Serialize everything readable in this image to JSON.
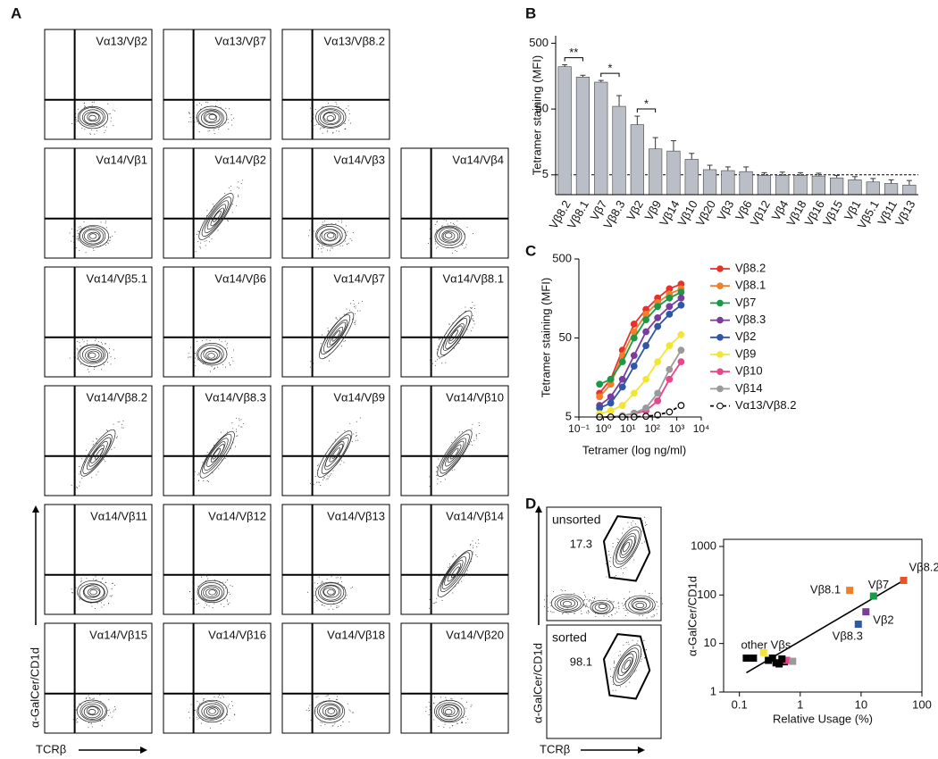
{
  "panel_labels": [
    "A",
    "B",
    "C",
    "D"
  ],
  "panel_a": {
    "y_label": "α-GalCer/CD1d",
    "x_label": "TCRβ",
    "plots": [
      "Vα13/Vβ2",
      "Vα13/Vβ7",
      "Vα13/Vβ8.2",
      "Vα14/Vβ1",
      "Vα14/Vβ2",
      "Vα14/Vβ3",
      "Vα14/Vβ4",
      "Vα14/Vβ5.1",
      "Vα14/Vβ6",
      "Vα14/Vβ7",
      "Vα14/Vβ8.1",
      "Vα14/Vβ8.2",
      "Vα14/Vβ8.3",
      "Vα14/Vβ9",
      "Vα14/Vβ10",
      "Vα14/Vβ11",
      "Vα14/Vβ12",
      "Vα14/Vβ13",
      "Vα14/Vβ14",
      "Vα14/Vβ15",
      "Vα14/Vβ16",
      "Vα14/Vβ18",
      "Vα14/Vβ20"
    ]
  },
  "panel_d_flow": {
    "y_label": "α-GalCer/CD1d",
    "x_label": "TCRβ",
    "plots": [
      {
        "label": "unsorted",
        "gate": 17.3
      },
      {
        "label": "sorted",
        "gate": 98.1
      }
    ]
  },
  "chart_data": [
    {
      "type": "bar",
      "y_label": "Tetramer staining (MFI)",
      "categories": [
        "Vβ8.2",
        "Vβ8.1",
        "Vβ7",
        "Vβ8.3",
        "Vβ2",
        "Vβ9",
        "Vβ14",
        "Vβ10",
        "Vβ20",
        "Vβ3",
        "Vβ6",
        "Vβ12",
        "Vβ4",
        "Vβ18",
        "Vβ16",
        "Vβ15",
        "Vβ1",
        "Vβ5.1",
        "Vβ11",
        "Vβ13"
      ],
      "values": [
        220,
        153,
        128,
        55,
        29,
        12.4,
        11.5,
        8.6,
        6.0,
        5.8,
        5.6,
        4.9,
        4.9,
        4.9,
        4.8,
        4.5,
        4.2,
        3.9,
        3.7,
        3.5
      ],
      "errors": [
        15,
        10,
        8,
        25,
        10,
        6,
        5,
        2,
        1,
        0.8,
        1,
        0.5,
        0.6,
        0.5,
        0.5,
        0.4,
        0.5,
        0.5,
        0.5,
        0.6
      ],
      "color": "#b9bec7",
      "log_y": true,
      "ylim": [
        2.5,
        650
      ],
      "yticks": [
        5,
        50,
        500
      ],
      "hline": 5,
      "annotations": [
        "**",
        "*",
        "*"
      ]
    },
    {
      "type": "line",
      "x_label": "Tetramer  (log ng/ml)",
      "y_label": "Tetramer staining (MFI)",
      "log_x": true,
      "log_y": true,
      "xlim": [
        0.1,
        10000
      ],
      "ylim": [
        5,
        500
      ],
      "xticks": [
        {
          "value": 0.1,
          "label": "10⁻¹"
        },
        {
          "value": 1,
          "label": "10⁰"
        },
        {
          "value": 10,
          "label": "10¹"
        },
        {
          "value": 100,
          "label": "10²"
        },
        {
          "value": 1000,
          "label": "10³"
        },
        {
          "value": 10000,
          "label": "10⁴"
        }
      ],
      "yticks": [
        5,
        50,
        500
      ],
      "x": [
        0.7,
        2,
        6,
        18,
        55,
        165,
        500,
        1500
      ],
      "series": [
        {
          "name": "Vβ8.2",
          "color": "#e8312a",
          "values": [
            10,
            15,
            35,
            75,
            115,
            160,
            210,
            240
          ]
        },
        {
          "name": "Vβ8.1",
          "color": "#f07f2a",
          "values": [
            9,
            13,
            30,
            60,
            100,
            140,
            180,
            210
          ]
        },
        {
          "name": "Vβ7",
          "color": "#1a9a48",
          "values": [
            13,
            15,
            25,
            50,
            85,
            125,
            160,
            190
          ]
        },
        {
          "name": "Vβ8.3",
          "color": "#7a3d9c",
          "values": [
            7,
            9,
            15,
            30,
            60,
            90,
            125,
            160
          ]
        },
        {
          "name": "Vβ2",
          "color": "#2f57a5",
          "values": [
            6.5,
            7.5,
            12,
            22,
            40,
            70,
            100,
            130
          ]
        },
        {
          "name": "Vβ9",
          "color": "#f2e632",
          "values": [
            5.5,
            6,
            7,
            10,
            15,
            25,
            40,
            55
          ]
        },
        {
          "name": "Vβ10",
          "color": "#e8468b",
          "values": [
            5,
            5,
            5.2,
            5.5,
            6,
            8,
            15,
            25
          ]
        },
        {
          "name": "Vβ14",
          "color": "#9a9a9a",
          "values": [
            5,
            5,
            5.2,
            5.6,
            6.5,
            10,
            20,
            35
          ]
        },
        {
          "name": "Vα13/Vβ8.2",
          "color": "#000000",
          "dashed": true,
          "values": [
            5,
            5,
            5,
            5,
            5.1,
            5.3,
            5.8,
            7
          ]
        }
      ]
    },
    {
      "type": "scatter",
      "x_label": "Relative Usage (%)",
      "y_label": "α-GalCer/CD1d",
      "log_x": true,
      "log_y": true,
      "xlim": [
        0.055,
        100
      ],
      "ylim": [
        1,
        1000
      ],
      "xticks": [
        0.1,
        1,
        10,
        100
      ],
      "yticks": [
        1,
        10,
        100,
        1000
      ],
      "trend": {
        "x": [
          0.13,
          50
        ],
        "y": [
          2.5,
          200
        ]
      },
      "series": [
        {
          "name": "Vβ8.2",
          "color": "#e8542a",
          "x": [
            50
          ],
          "y": [
            200
          ]
        },
        {
          "name": "Vβ8.1",
          "color": "#f07f2a",
          "x": [
            6.5
          ],
          "y": [
            125
          ]
        },
        {
          "name": "Vβ7",
          "color": "#1a9a48",
          "x": [
            16
          ],
          "y": [
            95
          ]
        },
        {
          "name": "Vβ2",
          "color": "#7a3d9c",
          "x": [
            12
          ],
          "y": [
            45
          ]
        },
        {
          "name": "Vβ8.3",
          "color": "#2f57a5",
          "x": [
            9
          ],
          "y": [
            25
          ]
        },
        {
          "name": "other Vβs",
          "color": "#000000",
          "colors": [
            "#000000",
            "#000000",
            "#f2e632",
            "#000000",
            "#000000",
            "#000000",
            "#000000",
            "#000000",
            "#e8468b",
            "#9a9a9a",
            "#000000"
          ],
          "x": [
            0.13,
            0.17,
            0.25,
            0.3,
            0.35,
            0.4,
            0.45,
            0.55,
            0.6,
            0.75,
            0.5
          ],
          "y": [
            5,
            5,
            6.5,
            4.5,
            5,
            4,
            3.8,
            4.2,
            4.5,
            4.3,
            4.8
          ]
        }
      ]
    }
  ]
}
